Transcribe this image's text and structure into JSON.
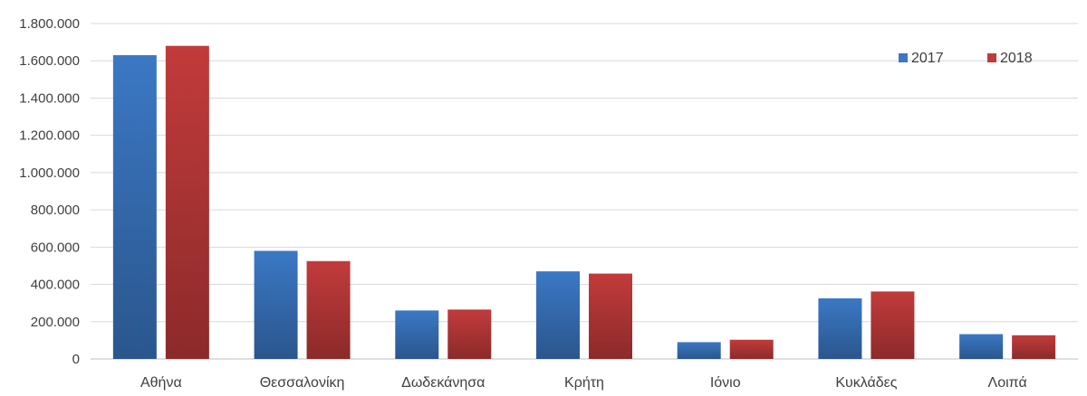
{
  "chart_data": {
    "type": "bar",
    "title": "",
    "xlabel": "",
    "ylabel": "",
    "categories": [
      "Αθήνα",
      "Θεσσαλονίκη",
      "Δωδεκάνησα",
      "Κρήτη",
      "Ιόνιο",
      "Κυκλάδες",
      "Λοιπά"
    ],
    "series": [
      {
        "name": "2017",
        "color": "#3b78c4",
        "values": [
          1630000,
          580000,
          260000,
          470000,
          90000,
          325000,
          133000
        ]
      },
      {
        "name": "2018",
        "color": "#c23b3b",
        "values": [
          1680000,
          525000,
          265000,
          458000,
          103000,
          362000,
          127000
        ]
      }
    ],
    "ylim": [
      0,
      1800000
    ],
    "yticks": [
      0,
      200000,
      400000,
      600000,
      800000,
      1000000,
      1200000,
      1400000,
      1600000,
      1800000
    ],
    "ytick_labels": [
      "0",
      "200.000",
      "400.000",
      "600.000",
      "800.000",
      "1.000.000",
      "1.200.000",
      "1.400.000",
      "1.600.000",
      "1.800.000"
    ],
    "grid": true,
    "legend_position": "top-right"
  }
}
